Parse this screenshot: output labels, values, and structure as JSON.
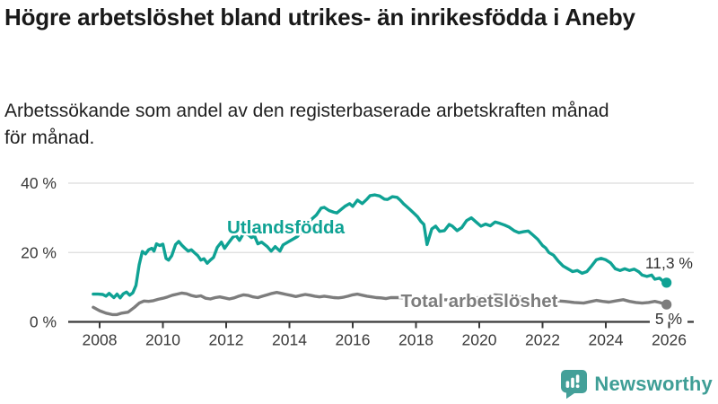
{
  "header": {
    "title": "Högre arbetslöshet bland utrikes- än inrikesfödda i Aneby",
    "subtitle": "Arbetssökande som andel av den registerbaserade arbetskraften månad för månad."
  },
  "footer": {
    "brand": "Newsworthy",
    "logo_icon": "bar-chart-exclamation-badge"
  },
  "colors": {
    "series_teal": "#0fa294",
    "series_gray": "#7d7d7d",
    "axis": "#3a3a3a",
    "grid": "#dcdcdc",
    "value_label": "#333333",
    "title_text": "#191919",
    "brand_teal": "#3f9e96"
  },
  "chart_data": {
    "type": "line",
    "unit": "%",
    "x_ticks": [
      2008,
      2010,
      2012,
      2014,
      2016,
      2018,
      2020,
      2022,
      2024,
      2026
    ],
    "y_ticks": [
      0,
      20,
      40
    ],
    "y_tick_labels": [
      "0 %",
      "20 %",
      "40 %"
    ],
    "xlim": [
      2007.0,
      2026.8
    ],
    "ylim": [
      0,
      46
    ],
    "grid": "horizontal-only",
    "legend_position": "inline-labels",
    "series": [
      {
        "name": "Utlandsfödda",
        "color": "#0fa294",
        "last_value": 11.3,
        "end_value_label": "11,3 %",
        "points": [
          [
            2007.8,
            8.0
          ],
          [
            2007.95,
            8.0
          ],
          [
            2008.1,
            7.9
          ],
          [
            2008.2,
            7.4
          ],
          [
            2008.3,
            8.2
          ],
          [
            2008.45,
            7.0
          ],
          [
            2008.55,
            8.0
          ],
          [
            2008.65,
            6.9
          ],
          [
            2008.75,
            8.1
          ],
          [
            2008.85,
            8.6
          ],
          [
            2008.95,
            7.7
          ],
          [
            2009.05,
            8.4
          ],
          [
            2009.15,
            10.5
          ],
          [
            2009.25,
            16.5
          ],
          [
            2009.35,
            20.3
          ],
          [
            2009.45,
            19.6
          ],
          [
            2009.55,
            20.8
          ],
          [
            2009.65,
            21.2
          ],
          [
            2009.72,
            20.4
          ],
          [
            2009.8,
            22.5
          ],
          [
            2009.9,
            22.0
          ],
          [
            2010.0,
            22.4
          ],
          [
            2010.1,
            18.3
          ],
          [
            2010.18,
            17.8
          ],
          [
            2010.28,
            19.1
          ],
          [
            2010.4,
            22.3
          ],
          [
            2010.5,
            23.2
          ],
          [
            2010.6,
            22.1
          ],
          [
            2010.7,
            21.2
          ],
          [
            2010.8,
            20.4
          ],
          [
            2010.9,
            20.8
          ],
          [
            2011.0,
            19.9
          ],
          [
            2011.1,
            19.1
          ],
          [
            2011.2,
            17.8
          ],
          [
            2011.3,
            18.2
          ],
          [
            2011.4,
            16.9
          ],
          [
            2011.5,
            17.8
          ],
          [
            2011.6,
            18.6
          ],
          [
            2011.72,
            21.5
          ],
          [
            2011.85,
            23.0
          ],
          [
            2011.95,
            21.2
          ],
          [
            2012.05,
            22.5
          ],
          [
            2012.2,
            24.3
          ],
          [
            2012.3,
            25.0
          ],
          [
            2012.42,
            23.5
          ],
          [
            2012.55,
            25.5
          ],
          [
            2012.7,
            25.1
          ],
          [
            2012.8,
            24.3
          ],
          [
            2012.9,
            24.7
          ],
          [
            2013.0,
            22.5
          ],
          [
            2013.12,
            23.0
          ],
          [
            2013.3,
            21.7
          ],
          [
            2013.42,
            20.4
          ],
          [
            2013.55,
            21.7
          ],
          [
            2013.7,
            20.4
          ],
          [
            2013.8,
            22.2
          ],
          [
            2013.95,
            23.0
          ],
          [
            2014.1,
            23.8
          ],
          [
            2014.25,
            24.6
          ],
          [
            2014.4,
            26.2
          ],
          [
            2014.55,
            28.2
          ],
          [
            2014.7,
            29.6
          ],
          [
            2014.85,
            30.8
          ],
          [
            2015.0,
            32.8
          ],
          [
            2015.1,
            33.0
          ],
          [
            2015.25,
            32.1
          ],
          [
            2015.4,
            31.6
          ],
          [
            2015.5,
            31.4
          ],
          [
            2015.62,
            32.3
          ],
          [
            2015.75,
            33.3
          ],
          [
            2015.9,
            34.1
          ],
          [
            2016.0,
            33.3
          ],
          [
            2016.15,
            35.1
          ],
          [
            2016.3,
            34.1
          ],
          [
            2016.45,
            35.4
          ],
          [
            2016.55,
            36.4
          ],
          [
            2016.7,
            36.6
          ],
          [
            2016.85,
            36.3
          ],
          [
            2017.0,
            35.4
          ],
          [
            2017.1,
            35.3
          ],
          [
            2017.25,
            36.1
          ],
          [
            2017.4,
            35.9
          ],
          [
            2017.5,
            35.1
          ],
          [
            2017.6,
            34.1
          ],
          [
            2017.7,
            33.3
          ],
          [
            2017.8,
            32.5
          ],
          [
            2017.95,
            31.2
          ],
          [
            2018.05,
            30.3
          ],
          [
            2018.15,
            29.0
          ],
          [
            2018.25,
            28.1
          ],
          [
            2018.35,
            22.3
          ],
          [
            2018.5,
            26.8
          ],
          [
            2018.62,
            27.6
          ],
          [
            2018.75,
            26.1
          ],
          [
            2018.9,
            26.3
          ],
          [
            2019.05,
            28.1
          ],
          [
            2019.15,
            27.6
          ],
          [
            2019.3,
            26.3
          ],
          [
            2019.45,
            27.2
          ],
          [
            2019.6,
            29.2
          ],
          [
            2019.75,
            30.0
          ],
          [
            2019.9,
            28.8
          ],
          [
            2020.05,
            27.6
          ],
          [
            2020.2,
            28.2
          ],
          [
            2020.35,
            27.7
          ],
          [
            2020.5,
            28.8
          ],
          [
            2020.65,
            28.4
          ],
          [
            2020.8,
            27.9
          ],
          [
            2020.95,
            27.3
          ],
          [
            2021.1,
            26.3
          ],
          [
            2021.25,
            25.7
          ],
          [
            2021.4,
            26.0
          ],
          [
            2021.55,
            26.2
          ],
          [
            2021.7,
            25.0
          ],
          [
            2021.85,
            23.8
          ],
          [
            2022.0,
            22.0
          ],
          [
            2022.1,
            21.3
          ],
          [
            2022.2,
            20.0
          ],
          [
            2022.35,
            19.2
          ],
          [
            2022.5,
            17.5
          ],
          [
            2022.65,
            16.1
          ],
          [
            2022.8,
            15.3
          ],
          [
            2022.95,
            14.5
          ],
          [
            2023.1,
            14.8
          ],
          [
            2023.25,
            14.0
          ],
          [
            2023.4,
            14.5
          ],
          [
            2023.55,
            16.1
          ],
          [
            2023.7,
            17.9
          ],
          [
            2023.85,
            18.3
          ],
          [
            2024.0,
            17.9
          ],
          [
            2024.15,
            17.0
          ],
          [
            2024.3,
            15.3
          ],
          [
            2024.45,
            14.8
          ],
          [
            2024.6,
            15.3
          ],
          [
            2024.75,
            14.8
          ],
          [
            2024.9,
            15.2
          ],
          [
            2025.05,
            14.4
          ],
          [
            2025.15,
            13.5
          ],
          [
            2025.3,
            13.1
          ],
          [
            2025.45,
            13.5
          ],
          [
            2025.55,
            12.3
          ],
          [
            2025.7,
            12.6
          ],
          [
            2025.8,
            11.8
          ],
          [
            2025.92,
            11.3
          ]
        ]
      },
      {
        "name": "Total arbetslöshet",
        "color": "#7d7d7d",
        "last_value": 5.0,
        "end_value_label": "5 %",
        "points": [
          [
            2007.8,
            4.2
          ],
          [
            2008.0,
            3.2
          ],
          [
            2008.2,
            2.5
          ],
          [
            2008.4,
            2.1
          ],
          [
            2008.55,
            2.1
          ],
          [
            2008.7,
            2.5
          ],
          [
            2008.9,
            2.8
          ],
          [
            2009.1,
            4.2
          ],
          [
            2009.25,
            5.4
          ],
          [
            2009.4,
            6.0
          ],
          [
            2009.55,
            5.9
          ],
          [
            2009.7,
            6.1
          ],
          [
            2009.85,
            6.5
          ],
          [
            2010.0,
            6.8
          ],
          [
            2010.15,
            7.2
          ],
          [
            2010.3,
            7.7
          ],
          [
            2010.45,
            8.0
          ],
          [
            2010.6,
            8.3
          ],
          [
            2010.75,
            8.1
          ],
          [
            2010.9,
            7.6
          ],
          [
            2011.05,
            7.3
          ],
          [
            2011.2,
            7.5
          ],
          [
            2011.35,
            6.8
          ],
          [
            2011.5,
            6.6
          ],
          [
            2011.65,
            7.0
          ],
          [
            2011.8,
            7.2
          ],
          [
            2011.95,
            6.9
          ],
          [
            2012.1,
            6.6
          ],
          [
            2012.25,
            6.9
          ],
          [
            2012.4,
            7.4
          ],
          [
            2012.55,
            7.8
          ],
          [
            2012.7,
            7.6
          ],
          [
            2012.85,
            7.2
          ],
          [
            2013.0,
            7.0
          ],
          [
            2013.15,
            7.4
          ],
          [
            2013.3,
            7.8
          ],
          [
            2013.45,
            8.2
          ],
          [
            2013.6,
            8.5
          ],
          [
            2013.75,
            8.2
          ],
          [
            2013.9,
            7.9
          ],
          [
            2014.05,
            7.6
          ],
          [
            2014.2,
            7.3
          ],
          [
            2014.35,
            7.6
          ],
          [
            2014.5,
            7.9
          ],
          [
            2014.65,
            7.7
          ],
          [
            2014.8,
            7.4
          ],
          [
            2014.95,
            7.2
          ],
          [
            2015.1,
            7.4
          ],
          [
            2015.25,
            7.2
          ],
          [
            2015.4,
            7.0
          ],
          [
            2015.55,
            6.9
          ],
          [
            2015.7,
            7.1
          ],
          [
            2015.85,
            7.4
          ],
          [
            2016.0,
            7.8
          ],
          [
            2016.15,
            8.0
          ],
          [
            2016.3,
            7.7
          ],
          [
            2016.45,
            7.4
          ],
          [
            2016.6,
            7.2
          ],
          [
            2016.75,
            7.0
          ],
          [
            2016.9,
            6.9
          ],
          [
            2017.05,
            6.7
          ],
          [
            2017.2,
            7.0
          ],
          [
            2017.5,
            7.0
          ],
          [
            2018.0,
            6.6
          ],
          [
            2018.5,
            6.3
          ],
          [
            2019.0,
            6.4
          ],
          [
            2019.5,
            6.6
          ],
          [
            2020.0,
            7.0
          ],
          [
            2020.5,
            7.8
          ],
          [
            2021.0,
            7.4
          ],
          [
            2021.5,
            6.9
          ],
          [
            2022.0,
            6.4
          ],
          [
            2022.4,
            6.1
          ],
          [
            2022.7,
            5.9
          ],
          [
            2023.0,
            5.6
          ],
          [
            2023.3,
            5.4
          ],
          [
            2023.5,
            5.8
          ],
          [
            2023.7,
            6.2
          ],
          [
            2023.9,
            5.9
          ],
          [
            2024.1,
            5.7
          ],
          [
            2024.35,
            6.1
          ],
          [
            2024.55,
            6.4
          ],
          [
            2024.75,
            5.9
          ],
          [
            2024.95,
            5.6
          ],
          [
            2025.15,
            5.4
          ],
          [
            2025.35,
            5.6
          ],
          [
            2025.55,
            5.9
          ],
          [
            2025.7,
            5.6
          ],
          [
            2025.8,
            5.3
          ],
          [
            2025.92,
            5.0
          ]
        ]
      }
    ]
  }
}
